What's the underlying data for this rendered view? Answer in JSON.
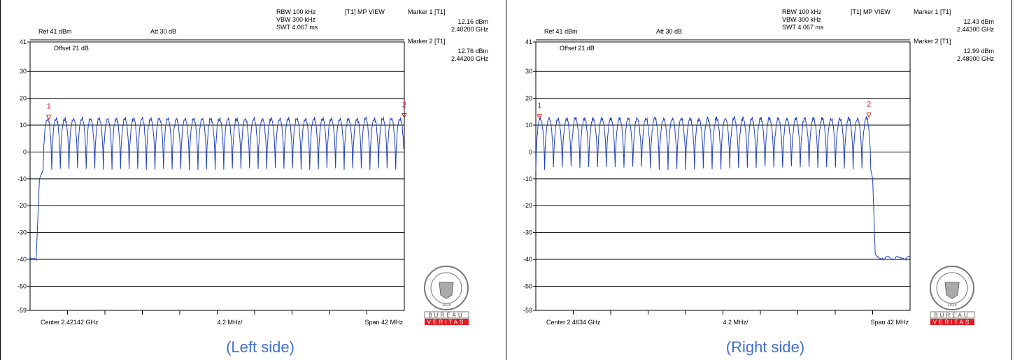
{
  "chart_data": [
    {
      "type": "line",
      "caption": "(Left side)",
      "ref_level": "Ref 41 dBm",
      "attenuation": "Att 30 dB",
      "offset": "Offset 21 dB",
      "settings": [
        "RBW 100 kHz",
        "VBW 300 kHz",
        "SWT 4.067 ms"
      ],
      "trace_label": "[T1] MP VIEW",
      "markers": [
        {
          "label": "Marker 1 [T1]",
          "level": "12.16 dBm",
          "freq": "2.40200 GHz",
          "id": "1",
          "x_div": 0.5,
          "y_dbm": 12.16
        },
        {
          "label": "Marker 2 [T1]",
          "level": "12.76 dBm",
          "freq": "2.44200 GHz",
          "id": "2",
          "x_div": 10.0,
          "y_dbm": 12.76
        }
      ],
      "center": "Center 2.42142 GHz",
      "div": "4.2 MHz/",
      "span": "Span 42 MHz",
      "yticks": [
        "41",
        "30",
        "20",
        "10",
        "0",
        "-10",
        "-20",
        "-30",
        "-40",
        "-50",
        "-59"
      ],
      "ytick_values": [
        41,
        30,
        20,
        10,
        0,
        -10,
        -20,
        -30,
        -40,
        -50,
        -59
      ],
      "ylim": [
        -59,
        41
      ],
      "xdivs": 10,
      "trace": {
        "floor_dbm": -40,
        "rise_div": 0.25,
        "plateau_start_div": 0.35,
        "plateau_end_div": 10.0,
        "peak_dbm": 12.5,
        "valley_dbm": -6,
        "channels": 42,
        "edge": "left"
      }
    },
    {
      "type": "line",
      "caption": "(Right side)",
      "ref_level": "Ref 41 dBm",
      "attenuation": "Att 30 dB",
      "offset": "Offset 21 dB",
      "settings": [
        "RBW 100 kHz",
        "VBW 300 kHz",
        "SWT 4.067 ms"
      ],
      "trace_label": "[T1] MP VIEW",
      "markers": [
        {
          "label": "Marker 1 [T1]",
          "level": "12.43 dBm",
          "freq": "2.44300 GHz",
          "id": "1",
          "x_div": 0.1,
          "y_dbm": 12.43
        },
        {
          "label": "Marker 2 [T1]",
          "level": "12.99 dBm",
          "freq": "2.48000 GHz",
          "id": "2",
          "x_div": 8.9,
          "y_dbm": 12.99
        }
      ],
      "center": "Center 2.4634 GHz",
      "div": "4.2 MHz/",
      "span": "Span 42 MHz",
      "yticks": [
        "41",
        "30",
        "20",
        "10",
        "0",
        "-10",
        "-20",
        "-30",
        "-40",
        "-50",
        "-59"
      ],
      "ytick_values": [
        41,
        30,
        20,
        10,
        0,
        -10,
        -20,
        -30,
        -40,
        -50,
        -59
      ],
      "ylim": [
        -59,
        41
      ],
      "xdivs": 10,
      "trace": {
        "floor_dbm": -40,
        "rise_div": 8.95,
        "plateau_start_div": 0.0,
        "plateau_end_div": 8.95,
        "peak_dbm": 12.5,
        "valley_dbm": -6,
        "channels": 38,
        "edge": "right"
      }
    }
  ],
  "logo": {
    "text_top": "BUREAU",
    "text_bottom": "VERITAS",
    "seal_year": "1828",
    "color": "#e31b23"
  },
  "colors": {
    "trace": "#1f3fbf",
    "marker": "#e31b23",
    "grid": "#000000",
    "caption": "#3f6fd8"
  }
}
